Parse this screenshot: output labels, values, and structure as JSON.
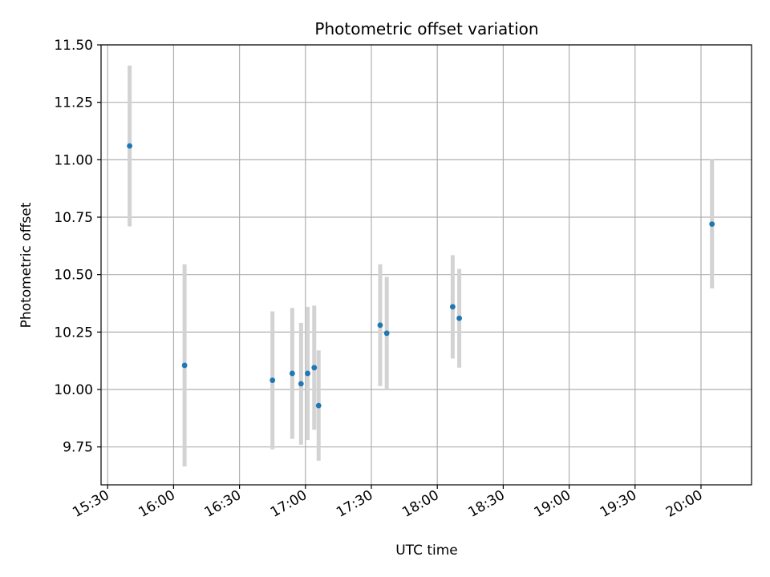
{
  "chart_data": {
    "type": "scatter",
    "title": "Photometric offset variation",
    "xlabel": "UTC time",
    "ylabel": "Photometric offset",
    "x_tick_labels": [
      "15:30",
      "16:00",
      "16:30",
      "17:00",
      "17:30",
      "18:00",
      "18:30",
      "19:00",
      "19:30",
      "20:00"
    ],
    "y_tick_labels": [
      "9.75",
      "10.00",
      "10.25",
      "10.50",
      "10.75",
      "11.00",
      "11.25",
      "11.50"
    ],
    "y_ticks": [
      9.75,
      10.0,
      10.25,
      10.5,
      10.75,
      11.0,
      11.25,
      11.5
    ],
    "xlim": [
      "15:27",
      "20:23"
    ],
    "ylim": [
      9.585,
      11.5
    ],
    "grid": true,
    "colors": {
      "point": "#1f77b4",
      "errorbar": "#d3d3d3",
      "grid": "#b0b0b0"
    },
    "series": [
      {
        "points": [
          {
            "x": "15:40",
            "y": 11.06,
            "yerr": 0.35
          },
          {
            "x": "16:05",
            "y": 10.105,
            "yerr": 0.44
          },
          {
            "x": "16:45",
            "y": 10.04,
            "yerr": 0.3
          },
          {
            "x": "16:54",
            "y": 10.07,
            "yerr": 0.285
          },
          {
            "x": "16:58",
            "y": 10.025,
            "yerr": 0.265
          },
          {
            "x": "17:01",
            "y": 10.07,
            "yerr": 0.29
          },
          {
            "x": "17:04",
            "y": 10.095,
            "yerr": 0.27
          },
          {
            "x": "17:06",
            "y": 9.93,
            "yerr": 0.24
          },
          {
            "x": "17:34",
            "y": 10.28,
            "yerr": 0.265
          },
          {
            "x": "17:37",
            "y": 10.245,
            "yerr": 0.245
          },
          {
            "x": "18:07",
            "y": 10.36,
            "yerr": 0.225
          },
          {
            "x": "18:10",
            "y": 10.31,
            "yerr": 0.215
          },
          {
            "x": "20:05",
            "y": 10.72,
            "yerr": 0.28
          }
        ]
      }
    ]
  }
}
